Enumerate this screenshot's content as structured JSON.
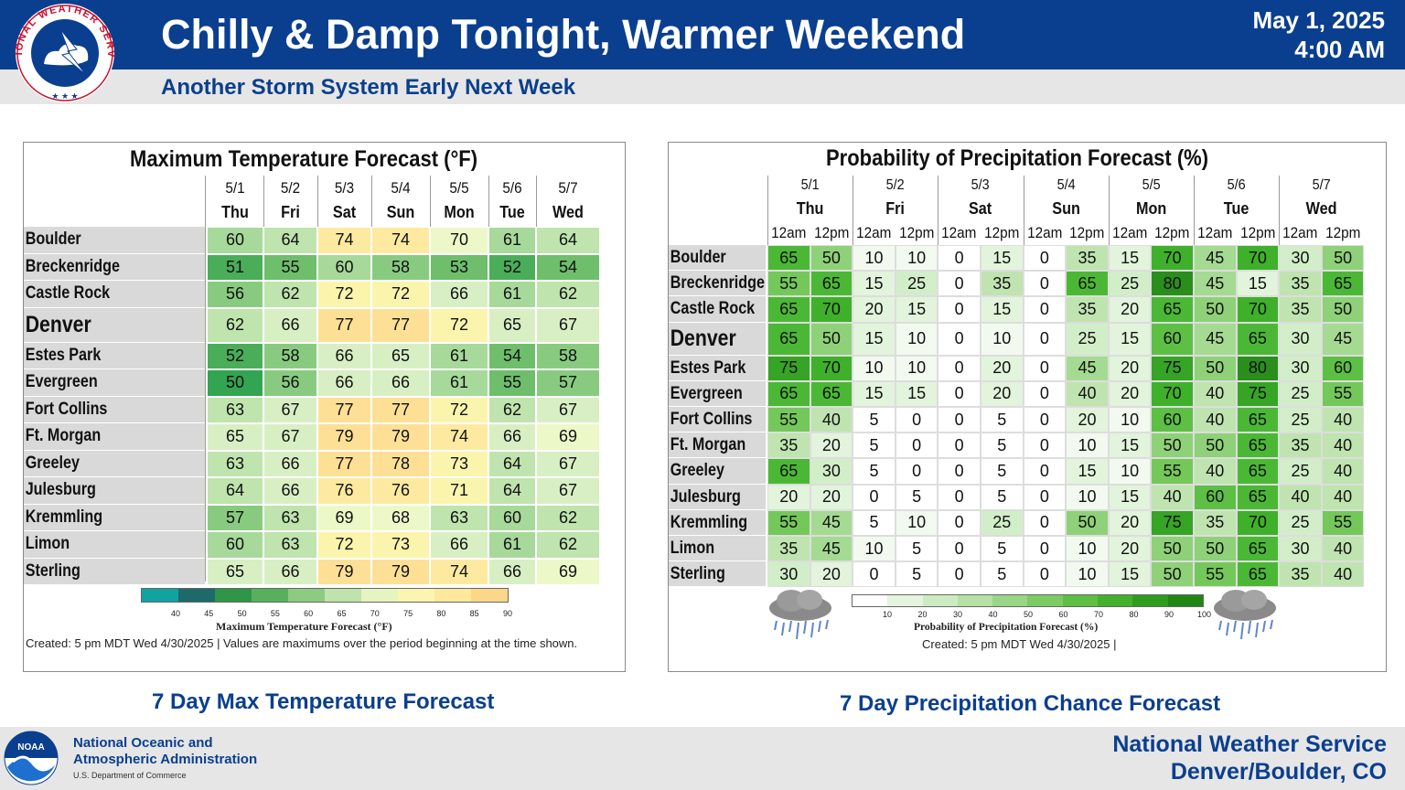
{
  "header": {
    "title": "Chilly & Damp Tonight, Warmer Weekend",
    "subtitle": "Another Storm System Early Next Week",
    "date": "May 1, 2025",
    "time": "4:00 AM",
    "logo_text": "NATIONAL WEATHER SERVICE"
  },
  "temp": {
    "title": "Maximum Temperature Forecast (°F)",
    "days": [
      {
        "date": "5/1",
        "dow": "Thu"
      },
      {
        "date": "5/2",
        "dow": "Fri"
      },
      {
        "date": "5/3",
        "dow": "Sat"
      },
      {
        "date": "5/4",
        "dow": "Sun"
      },
      {
        "date": "5/5",
        "dow": "Mon"
      },
      {
        "date": "5/6",
        "dow": "Tue"
      },
      {
        "date": "5/7",
        "dow": "Wed"
      }
    ],
    "rows": [
      {
        "city": "Boulder",
        "values": [
          60,
          64,
          74,
          74,
          70,
          61,
          64
        ]
      },
      {
        "city": "Breckenridge",
        "values": [
          51,
          55,
          60,
          58,
          53,
          52,
          54
        ]
      },
      {
        "city": "Castle Rock",
        "values": [
          56,
          62,
          72,
          72,
          66,
          61,
          62
        ]
      },
      {
        "city": "Denver",
        "values": [
          62,
          66,
          77,
          77,
          72,
          65,
          67
        ],
        "big": true
      },
      {
        "city": "Estes Park",
        "values": [
          52,
          58,
          66,
          65,
          61,
          54,
          58
        ]
      },
      {
        "city": "Evergreen",
        "values": [
          50,
          56,
          66,
          66,
          61,
          55,
          57
        ]
      },
      {
        "city": "Fort Collins",
        "values": [
          63,
          67,
          77,
          77,
          72,
          62,
          67
        ]
      },
      {
        "city": "Ft. Morgan",
        "values": [
          65,
          67,
          79,
          79,
          74,
          66,
          69
        ]
      },
      {
        "city": "Greeley",
        "values": [
          63,
          66,
          77,
          78,
          73,
          64,
          67
        ]
      },
      {
        "city": "Julesburg",
        "values": [
          64,
          66,
          76,
          76,
          71,
          64,
          67
        ]
      },
      {
        "city": "Kremmling",
        "values": [
          57,
          63,
          69,
          68,
          63,
          60,
          62
        ]
      },
      {
        "city": "Limon",
        "values": [
          60,
          63,
          72,
          73,
          66,
          61,
          62
        ]
      },
      {
        "city": "Sterling",
        "values": [
          65,
          66,
          79,
          79,
          74,
          66,
          69
        ]
      }
    ],
    "legend_ticks": [
      "40",
      "45",
      "50",
      "55",
      "60",
      "65",
      "70",
      "75",
      "80",
      "85",
      "90"
    ],
    "legend_title": "Maximum Temperature Forecast (°F)",
    "note": "Created: 5 pm MDT Wed 4/30/2025  |  Values are maximums over the period beginning at the time shown.",
    "caption": "7 Day Max Temperature Forecast"
  },
  "pop": {
    "title": "Probability of Precipitation Forecast (%)",
    "days": [
      {
        "date": "5/1",
        "dow": "Thu"
      },
      {
        "date": "5/2",
        "dow": "Fri"
      },
      {
        "date": "5/3",
        "dow": "Sat"
      },
      {
        "date": "5/4",
        "dow": "Sun"
      },
      {
        "date": "5/5",
        "dow": "Mon"
      },
      {
        "date": "5/6",
        "dow": "Tue"
      },
      {
        "date": "5/7",
        "dow": "Wed"
      }
    ],
    "periods": [
      "12am",
      "12pm"
    ],
    "rows": [
      {
        "city": "Boulder",
        "values": [
          65,
          50,
          10,
          10,
          0,
          15,
          0,
          35,
          15,
          70,
          45,
          70,
          30,
          50
        ]
      },
      {
        "city": "Breckenridge",
        "values": [
          55,
          65,
          15,
          25,
          0,
          35,
          0,
          65,
          25,
          80,
          45,
          15,
          35,
          65
        ]
      },
      {
        "city": "Castle Rock",
        "values": [
          65,
          70,
          20,
          15,
          0,
          15,
          0,
          35,
          20,
          65,
          50,
          70,
          35,
          50
        ]
      },
      {
        "city": "Denver",
        "values": [
          65,
          50,
          15,
          10,
          0,
          10,
          0,
          25,
          15,
          60,
          45,
          65,
          30,
          45
        ],
        "big": true
      },
      {
        "city": "Estes Park",
        "values": [
          75,
          70,
          10,
          10,
          0,
          20,
          0,
          45,
          20,
          75,
          50,
          80,
          30,
          60
        ]
      },
      {
        "city": "Evergreen",
        "values": [
          65,
          65,
          15,
          15,
          0,
          20,
          0,
          40,
          20,
          70,
          40,
          75,
          25,
          55
        ]
      },
      {
        "city": "Fort Collins",
        "values": [
          55,
          40,
          5,
          0,
          0,
          5,
          0,
          20,
          10,
          60,
          40,
          65,
          25,
          40
        ]
      },
      {
        "city": "Ft. Morgan",
        "values": [
          35,
          20,
          5,
          0,
          0,
          5,
          0,
          10,
          15,
          50,
          50,
          65,
          35,
          40
        ]
      },
      {
        "city": "Greeley",
        "values": [
          65,
          30,
          5,
          0,
          0,
          5,
          0,
          15,
          10,
          55,
          40,
          65,
          25,
          40
        ]
      },
      {
        "city": "Julesburg",
        "values": [
          20,
          20,
          0,
          5,
          0,
          5,
          0,
          10,
          15,
          40,
          60,
          65,
          40,
          40
        ]
      },
      {
        "city": "Kremmling",
        "values": [
          55,
          45,
          5,
          10,
          0,
          25,
          0,
          50,
          20,
          75,
          35,
          70,
          25,
          55
        ]
      },
      {
        "city": "Limon",
        "values": [
          35,
          45,
          10,
          5,
          0,
          5,
          0,
          10,
          20,
          50,
          50,
          65,
          30,
          40
        ]
      },
      {
        "city": "Sterling",
        "values": [
          30,
          20,
          0,
          5,
          0,
          5,
          0,
          10,
          15,
          50,
          55,
          65,
          35,
          40
        ]
      }
    ],
    "legend_ticks": [
      "10",
      "20",
      "30",
      "40",
      "50",
      "60",
      "70",
      "80",
      "90",
      "100"
    ],
    "legend_title": "Probability of Precipitation Forecast (%)",
    "note": "Created: 5 pm MDT Wed 4/30/2025  |",
    "caption": "7 Day Precipitation Chance Forecast"
  },
  "footer": {
    "noaa_line1": "National Oceanic and",
    "noaa_line2": "Atmospheric Administration",
    "noaa_dept": "U.S. Department of Commerce",
    "noaa_logo_text": "NOAA",
    "office_line1": "National Weather Service",
    "office_line2": "Denver/Boulder, CO"
  },
  "colors": {
    "brand_blue": "#0a3f8f",
    "header_grey": "#e6e6e6",
    "row_label_grey": "#d9d9d9"
  }
}
